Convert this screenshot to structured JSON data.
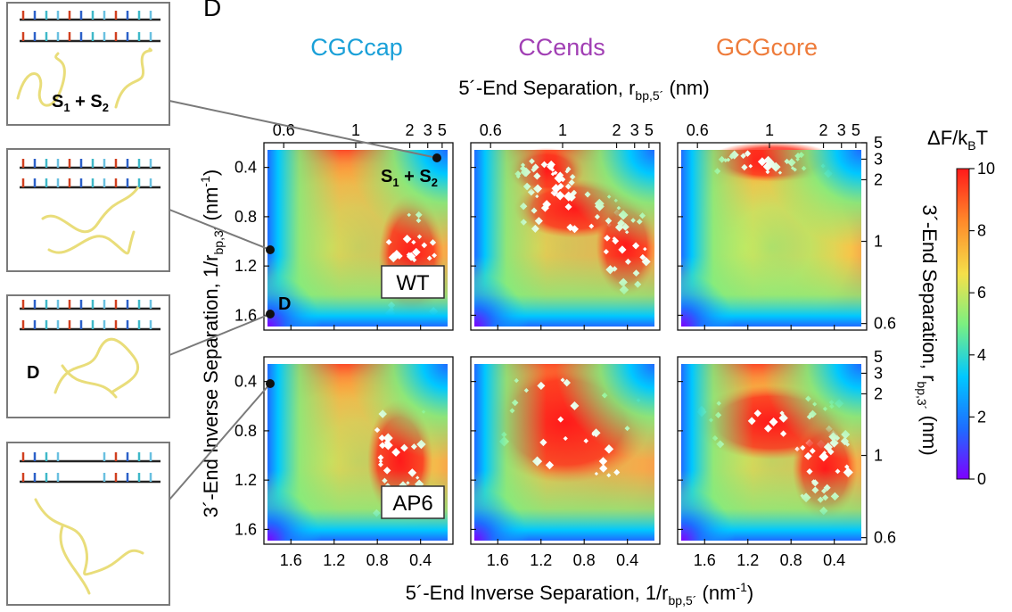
{
  "panel_letter": "D",
  "columns": [
    {
      "label": "CGCcap",
      "color": "#1aa0d8"
    },
    {
      "label": "CCends",
      "color": "#a13fb4"
    },
    {
      "label": "GCGcore",
      "color": "#ee7b3a"
    }
  ],
  "rows": [
    "WT",
    "AP6"
  ],
  "axes": {
    "top_label": "5´-End Separation, r",
    "top_sub": "bp,5´",
    "top_unit": " (nm)",
    "bottom_label": "5´-End Inverse Separation, 1/r",
    "bottom_sub": "bp,5´",
    "bottom_unit": " (nm",
    "bottom_sup": "-1",
    "bottom_close": ")",
    "left_label": "3´-End Inverse Separation, 1/r",
    "left_sub": "bp,3´",
    "left_unit": " (nm",
    "left_sup": "-1",
    "left_close": ")",
    "right_label": "3´-End Separation, r",
    "right_sub": "bp,3´",
    "right_unit": " (nm)"
  },
  "state_labels": {
    "s": "S",
    "sub1": "1",
    "plus": " + ",
    "sub2": "2",
    "d": "D"
  },
  "colorbar": {
    "title": "ΔF/k",
    "title_sub": "B",
    "title_end": "T",
    "min": 0,
    "max": 10,
    "ticks": [
      "10",
      "8",
      "6",
      "4",
      "2",
      "0"
    ],
    "colors": [
      "#7d00ff",
      "#1f6bff",
      "#00c8ff",
      "#7cf080",
      "#f5e04a",
      "#ff8a2a",
      "#ff1a1a"
    ]
  },
  "chart_data": {
    "type": "heatmap",
    "x_inverse_ticks": [
      "1.6",
      "1.2",
      "0.8",
      "0.4"
    ],
    "x_inverse_range": [
      1.85,
      0.1
    ],
    "y_inverse_ticks": [
      "0.4",
      "0.8",
      "1.2",
      "1.6"
    ],
    "y_inverse_range": [
      0.2,
      1.72
    ],
    "top_ticks": [
      "0.6",
      "1",
      "2",
      "3",
      "5"
    ],
    "right_ticks": [
      "5",
      "3",
      "2",
      "1",
      "0.6"
    ],
    "value_range": [
      0,
      10
    ]
  }
}
